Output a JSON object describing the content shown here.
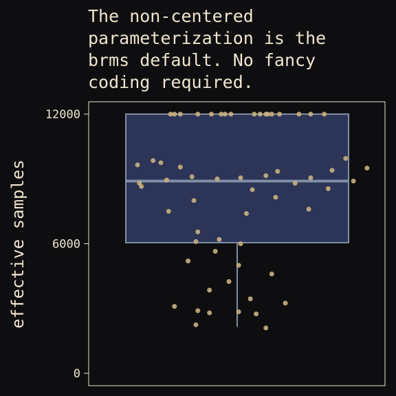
{
  "chart_data": {
    "type": "box",
    "title_lines": [
      "The non-centered",
      "parameterization is the",
      "brms default. No fancy",
      "coding required."
    ],
    "xlabel": "",
    "ylabel": "effective samples",
    "ylim": [
      -500,
      12500
    ],
    "y_ticks": [
      0,
      6000,
      12000
    ],
    "y_tick_labels": [
      "0",
      "6000",
      "12000"
    ],
    "box": {
      "whisker_low": 2150,
      "q1": 6050,
      "median": 8900,
      "q3": 12000,
      "whisker_high": 12000
    },
    "points": [
      {
        "j": 0.31,
        "y": 12000
      },
      {
        "j": 0.33,
        "y": 12000
      },
      {
        "j": 0.36,
        "y": 12000
      },
      {
        "j": 0.45,
        "y": 12000
      },
      {
        "j": 0.52,
        "y": 12000
      },
      {
        "j": 0.57,
        "y": 12000
      },
      {
        "j": 0.59,
        "y": 12000
      },
      {
        "j": 0.62,
        "y": 12000
      },
      {
        "j": 0.74,
        "y": 12000
      },
      {
        "j": 0.77,
        "y": 12000
      },
      {
        "j": 0.8,
        "y": 12000
      },
      {
        "j": 0.81,
        "y": 12000
      },
      {
        "j": 0.83,
        "y": 12000
      },
      {
        "j": 0.87,
        "y": 12000
      },
      {
        "j": 0.97,
        "y": 12000
      },
      {
        "j": 1.03,
        "y": 12000
      },
      {
        "j": 1.1,
        "y": 12000
      },
      {
        "j": 0.14,
        "y": 9650
      },
      {
        "j": 0.22,
        "y": 9850
      },
      {
        "j": 0.26,
        "y": 9750
      },
      {
        "j": 0.36,
        "y": 9550
      },
      {
        "j": 0.8,
        "y": 9150
      },
      {
        "j": 0.86,
        "y": 9350
      },
      {
        "j": 1.14,
        "y": 9400
      },
      {
        "j": 1.21,
        "y": 9950
      },
      {
        "j": 1.32,
        "y": 9500
      },
      {
        "j": 0.15,
        "y": 8800
      },
      {
        "j": 0.16,
        "y": 8650
      },
      {
        "j": 0.29,
        "y": 8950
      },
      {
        "j": 0.42,
        "y": 9100
      },
      {
        "j": 0.55,
        "y": 9000
      },
      {
        "j": 0.67,
        "y": 9050
      },
      {
        "j": 0.73,
        "y": 8500
      },
      {
        "j": 0.95,
        "y": 8800
      },
      {
        "j": 1.03,
        "y": 9050
      },
      {
        "j": 1.12,
        "y": 8550
      },
      {
        "j": 1.25,
        "y": 8900
      },
      {
        "j": 0.3,
        "y": 7500
      },
      {
        "j": 0.43,
        "y": 8000
      },
      {
        "j": 0.7,
        "y": 7400
      },
      {
        "j": 0.85,
        "y": 8150
      },
      {
        "j": 1.02,
        "y": 7600
      },
      {
        "j": 0.45,
        "y": 6550
      },
      {
        "j": 0.44,
        "y": 6100
      },
      {
        "j": 0.56,
        "y": 6200
      },
      {
        "j": 0.67,
        "y": 6000
      },
      {
        "j": 0.54,
        "y": 5650
      },
      {
        "j": 0.4,
        "y": 5200
      },
      {
        "j": 0.66,
        "y": 5000
      },
      {
        "j": 0.83,
        "y": 4600
      },
      {
        "j": 0.61,
        "y": 4250
      },
      {
        "j": 0.51,
        "y": 3850
      },
      {
        "j": 0.72,
        "y": 3450
      },
      {
        "j": 0.33,
        "y": 3100
      },
      {
        "j": 0.9,
        "y": 3250
      },
      {
        "j": 0.45,
        "y": 2900
      },
      {
        "j": 0.51,
        "y": 2800
      },
      {
        "j": 0.66,
        "y": 2850
      },
      {
        "j": 0.75,
        "y": 2750
      },
      {
        "j": 0.44,
        "y": 2250
      },
      {
        "j": 0.8,
        "y": 2100
      }
    ],
    "grid": false,
    "legend": "none",
    "colors": {
      "background": "#0e0e10",
      "box_fill": "#2c3457",
      "box_stroke": "#7f8fa4",
      "point": "#c9b07f",
      "text": "#efe4cf",
      "frame": "#efe4cf"
    }
  }
}
